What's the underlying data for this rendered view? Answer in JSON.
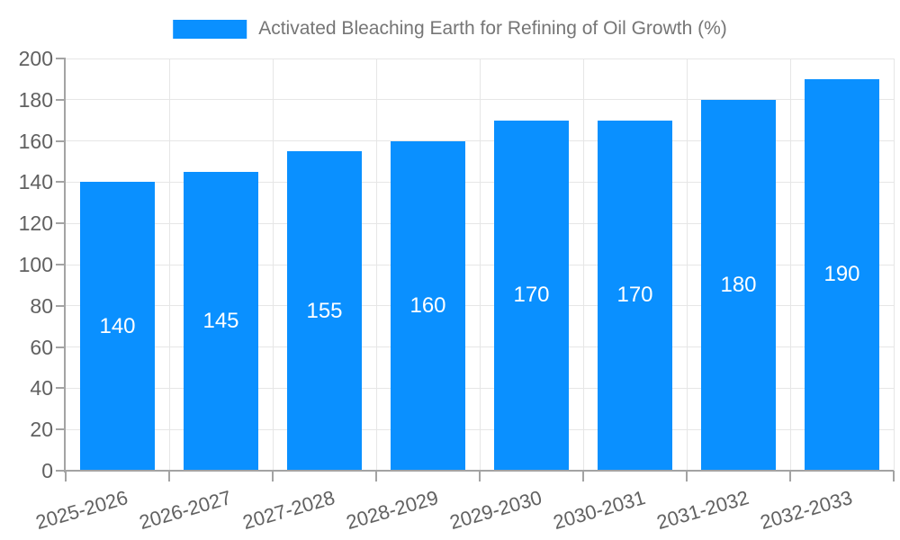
{
  "chart_data": {
    "type": "bar",
    "title": "Activated Bleaching Earth for Refining of Oil Growth (%)",
    "legend": "Activated Bleaching Earth for Refining of Oil Growth (%)",
    "legend_position": "top-center",
    "categories": [
      "2025-2026",
      "2026-2027",
      "2027-2028",
      "2028-2029",
      "2029-2030",
      "2030-2031",
      "2031-2032",
      "2032-2033"
    ],
    "values": [
      140,
      145,
      155,
      160,
      170,
      170,
      180,
      190
    ],
    "xlabel": "",
    "ylabel": "",
    "ylim": [
      0,
      200
    ],
    "yticks": [
      0,
      20,
      40,
      60,
      80,
      100,
      120,
      140,
      160,
      180,
      200
    ],
    "grid": "horizontal-and-vertical",
    "value_label_position": "inside-center",
    "x_label_rotation_deg": -16
  },
  "colors": {
    "bar": "#0A90FF",
    "grid": "#E6E6E6",
    "axis": "#A3A3A3",
    "tick-label": "#616161",
    "legend-text": "#757575",
    "value-label": "#FFFFFF",
    "background": "#FFFFFF"
  }
}
